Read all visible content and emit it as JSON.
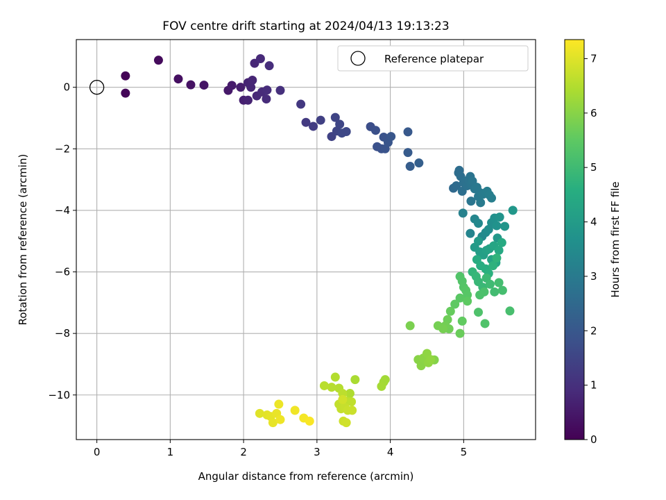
{
  "chart_data": {
    "type": "scatter",
    "title": "FOV centre drift starting at 2024/04/13 19:13:23",
    "xlabel": "Angular distance from reference (arcmin)",
    "ylabel": "Rotation from reference (arcmin)",
    "xlim": [
      -0.28,
      5.98
    ],
    "ylim": [
      -11.45,
      1.55
    ],
    "xticks": [
      0,
      1,
      2,
      3,
      4,
      5
    ],
    "xtick_labels": [
      "0",
      "1",
      "2",
      "3",
      "4",
      "5"
    ],
    "yticks": [
      -10,
      -8,
      -6,
      -4,
      -2,
      0
    ],
    "ytick_labels": [
      "−10",
      "−8",
      "−6",
      "−4",
      "−2",
      "0"
    ],
    "grid": true,
    "legend": {
      "location": "upper right",
      "entries": [
        "Reference platepar"
      ]
    },
    "reference_point": {
      "name": "Reference platepar",
      "x": 0,
      "y": 0,
      "marker": "open-circle"
    },
    "colorbar": {
      "label": "Hours from first FF file",
      "colormap": "viridis",
      "min": 0,
      "max": 7.35,
      "ticks": [
        0,
        1,
        2,
        3,
        4,
        5,
        6,
        7
      ],
      "tick_labels": [
        "0",
        "1",
        "2",
        "3",
        "4",
        "5",
        "6",
        "7"
      ]
    },
    "points": [
      [
        0.39,
        0.37,
        0.05
      ],
      [
        0.39,
        -0.19,
        0.1
      ],
      [
        0.84,
        0.88,
        0.2
      ],
      [
        1.11,
        0.27,
        0.3
      ],
      [
        1.28,
        0.08,
        0.35
      ],
      [
        1.46,
        0.07,
        0.4
      ],
      [
        1.79,
        -0.1,
        0.5
      ],
      [
        1.84,
        0.06,
        0.55
      ],
      [
        1.96,
        0.0,
        0.6
      ],
      [
        2.0,
        -0.42,
        0.65
      ],
      [
        2.06,
        -0.42,
        0.7
      ],
      [
        2.06,
        0.15,
        0.72
      ],
      [
        2.1,
        0.0,
        0.75
      ],
      [
        2.12,
        0.23,
        0.78
      ],
      [
        2.15,
        0.78,
        0.8
      ],
      [
        2.18,
        -0.28,
        0.83
      ],
      [
        2.23,
        0.93,
        0.86
      ],
      [
        2.25,
        -0.15,
        0.88
      ],
      [
        2.31,
        -0.38,
        0.9
      ],
      [
        2.32,
        -0.09,
        0.92
      ],
      [
        2.35,
        0.7,
        0.95
      ],
      [
        2.5,
        -0.1,
        1.0
      ],
      [
        2.78,
        -0.55,
        1.2
      ],
      [
        2.85,
        -1.14,
        1.25
      ],
      [
        2.95,
        -1.27,
        1.3
      ],
      [
        3.05,
        -1.07,
        1.4
      ],
      [
        3.2,
        -1.6,
        1.45
      ],
      [
        3.25,
        -0.98,
        1.5
      ],
      [
        3.27,
        -1.42,
        1.52
      ],
      [
        3.31,
        -1.2,
        1.55
      ],
      [
        3.34,
        -1.49,
        1.58
      ],
      [
        3.4,
        -1.44,
        1.6
      ],
      [
        3.73,
        -1.28,
        1.75
      ],
      [
        3.8,
        -1.4,
        1.8
      ],
      [
        3.82,
        -1.93,
        1.82
      ],
      [
        3.88,
        -2.0,
        1.85
      ],
      [
        3.91,
        -1.62,
        1.88
      ],
      [
        3.93,
        -2.0,
        1.9
      ],
      [
        3.97,
        -1.79,
        1.93
      ],
      [
        4.01,
        -1.6,
        1.96
      ],
      [
        4.24,
        -1.45,
        2.05
      ],
      [
        4.24,
        -2.12,
        2.1
      ],
      [
        4.27,
        -2.57,
        2.15
      ],
      [
        4.39,
        -2.46,
        2.2
      ],
      [
        4.86,
        -3.28,
        2.5
      ],
      [
        4.9,
        -3.2,
        2.55
      ],
      [
        4.93,
        -2.78,
        2.6
      ],
      [
        4.94,
        -2.7,
        2.62
      ],
      [
        4.96,
        -2.9,
        2.65
      ],
      [
        4.98,
        -3.38,
        2.68
      ],
      [
        5.0,
        -3.1,
        2.7
      ],
      [
        5.02,
        -3.05,
        2.72
      ],
      [
        5.05,
        -3.2,
        2.75
      ],
      [
        5.07,
        -3.0,
        2.78
      ],
      [
        5.09,
        -2.9,
        2.8
      ],
      [
        5.1,
        -3.15,
        2.82
      ],
      [
        5.1,
        -3.7,
        2.85
      ],
      [
        5.12,
        -3.05,
        2.88
      ],
      [
        5.15,
        -3.3,
        2.9
      ],
      [
        5.18,
        -3.25,
        2.92
      ],
      [
        5.2,
        -3.55,
        2.95
      ],
      [
        5.22,
        -3.42,
        2.97
      ],
      [
        5.23,
        -3.75,
        3.0
      ],
      [
        5.26,
        -3.48,
        3.02
      ],
      [
        5.3,
        -3.42,
        3.05
      ],
      [
        5.32,
        -3.38,
        3.07
      ],
      [
        5.35,
        -3.5,
        3.1
      ],
      [
        5.38,
        -3.6,
        3.12
      ],
      [
        4.99,
        -4.09,
        3.2
      ],
      [
        5.09,
        -4.75,
        3.3
      ],
      [
        5.15,
        -4.28,
        3.35
      ],
      [
        5.2,
        -4.42,
        3.4
      ],
      [
        5.25,
        -4.85,
        3.45
      ],
      [
        5.3,
        -4.72,
        3.5
      ],
      [
        5.34,
        -4.62,
        3.55
      ],
      [
        5.38,
        -4.4,
        3.6
      ],
      [
        5.42,
        -4.25,
        3.65
      ],
      [
        5.45,
        -4.5,
        3.7
      ],
      [
        5.49,
        -4.22,
        3.75
      ],
      [
        5.56,
        -4.52,
        3.8
      ],
      [
        5.67,
        -4.0,
        3.85
      ],
      [
        5.46,
        -4.9,
        3.9
      ],
      [
        5.15,
        -5.2,
        3.95
      ],
      [
        5.2,
        -5.0,
        4.0
      ],
      [
        5.22,
        -5.35,
        4.05
      ],
      [
        5.27,
        -5.45,
        4.1
      ],
      [
        5.31,
        -5.3,
        4.15
      ],
      [
        5.35,
        -5.25,
        4.2
      ],
      [
        5.38,
        -5.6,
        4.25
      ],
      [
        5.41,
        -5.15,
        4.3
      ],
      [
        5.44,
        -5.7,
        4.35
      ],
      [
        5.48,
        -5.3,
        4.4
      ],
      [
        5.52,
        -5.05,
        4.45
      ],
      [
        5.18,
        -5.6,
        4.5
      ],
      [
        5.23,
        -5.8,
        4.55
      ],
      [
        5.3,
        -5.9,
        4.6
      ],
      [
        5.34,
        -6.05,
        4.65
      ],
      [
        5.4,
        -5.8,
        4.7
      ],
      [
        5.45,
        -5.55,
        4.75
      ],
      [
        5.12,
        -6.0,
        4.8
      ],
      [
        5.17,
        -6.15,
        4.85
      ],
      [
        5.2,
        -6.32,
        4.88
      ],
      [
        5.26,
        -6.5,
        4.9
      ],
      [
        5.31,
        -6.2,
        4.95
      ],
      [
        5.36,
        -6.4,
        5.0
      ],
      [
        5.42,
        -6.65,
        5.05
      ],
      [
        5.48,
        -6.35,
        5.08
      ],
      [
        5.53,
        -6.6,
        5.1
      ],
      [
        5.63,
        -7.27,
        5.15
      ],
      [
        5.28,
        -6.65,
        5.2
      ],
      [
        5.22,
        -6.75,
        5.22
      ],
      [
        5.2,
        -7.31,
        5.25
      ],
      [
        5.29,
        -7.68,
        5.28
      ],
      [
        4.95,
        -6.15,
        5.3
      ],
      [
        4.98,
        -6.3,
        5.32
      ],
      [
        5.0,
        -6.5,
        5.35
      ],
      [
        5.03,
        -6.6,
        5.38
      ],
      [
        5.05,
        -6.75,
        5.4
      ],
      [
        4.95,
        -6.85,
        5.45
      ],
      [
        5.05,
        -6.95,
        5.5
      ],
      [
        4.88,
        -7.05,
        5.52
      ],
      [
        4.98,
        -7.6,
        5.55
      ],
      [
        4.82,
        -7.28,
        5.6
      ],
      [
        4.95,
        -8.0,
        5.65
      ],
      [
        4.78,
        -7.55,
        5.7
      ],
      [
        4.8,
        -7.85,
        5.72
      ],
      [
        4.75,
        -7.75,
        5.75
      ],
      [
        4.65,
        -7.75,
        5.78
      ],
      [
        4.72,
        -7.85,
        5.8
      ],
      [
        4.27,
        -7.75,
        5.85
      ],
      [
        4.6,
        -8.86,
        5.95
      ],
      [
        4.38,
        -8.85,
        6.0
      ],
      [
        4.42,
        -9.05,
        6.02
      ],
      [
        4.45,
        -8.8,
        6.05
      ],
      [
        4.5,
        -8.65,
        6.08
      ],
      [
        4.52,
        -8.95,
        6.1
      ],
      [
        4.55,
        -8.85,
        6.12
      ],
      [
        3.93,
        -9.5,
        6.3
      ],
      [
        3.91,
        -9.58,
        6.32
      ],
      [
        3.88,
        -9.72,
        6.34
      ],
      [
        3.52,
        -9.5,
        6.4
      ],
      [
        3.45,
        -9.95,
        6.45
      ],
      [
        3.25,
        -9.42,
        6.5
      ],
      [
        3.3,
        -9.78,
        6.52
      ],
      [
        3.2,
        -9.75,
        6.55
      ],
      [
        3.1,
        -9.7,
        6.57
      ],
      [
        3.35,
        -9.95,
        6.6
      ],
      [
        3.4,
        -10.2,
        6.62
      ],
      [
        3.47,
        -10.22,
        6.65
      ],
      [
        3.3,
        -10.3,
        6.67
      ],
      [
        3.33,
        -10.45,
        6.7
      ],
      [
        3.38,
        -10.4,
        6.72
      ],
      [
        3.42,
        -10.5,
        6.75
      ],
      [
        3.48,
        -10.5,
        6.77
      ],
      [
        3.36,
        -10.85,
        6.8
      ],
      [
        3.4,
        -10.9,
        6.82
      ],
      [
        3.35,
        -10.15,
        6.84
      ],
      [
        2.22,
        -10.6,
        7.0
      ],
      [
        2.32,
        -10.65,
        7.05
      ],
      [
        2.37,
        -10.7,
        7.08
      ],
      [
        2.4,
        -10.9,
        7.1
      ],
      [
        2.45,
        -10.6,
        7.12
      ],
      [
        2.48,
        -10.3,
        7.15
      ],
      [
        2.5,
        -10.8,
        7.18
      ],
      [
        2.7,
        -10.5,
        7.2
      ],
      [
        2.82,
        -10.75,
        7.25
      ],
      [
        2.9,
        -10.85,
        7.3
      ]
    ]
  }
}
